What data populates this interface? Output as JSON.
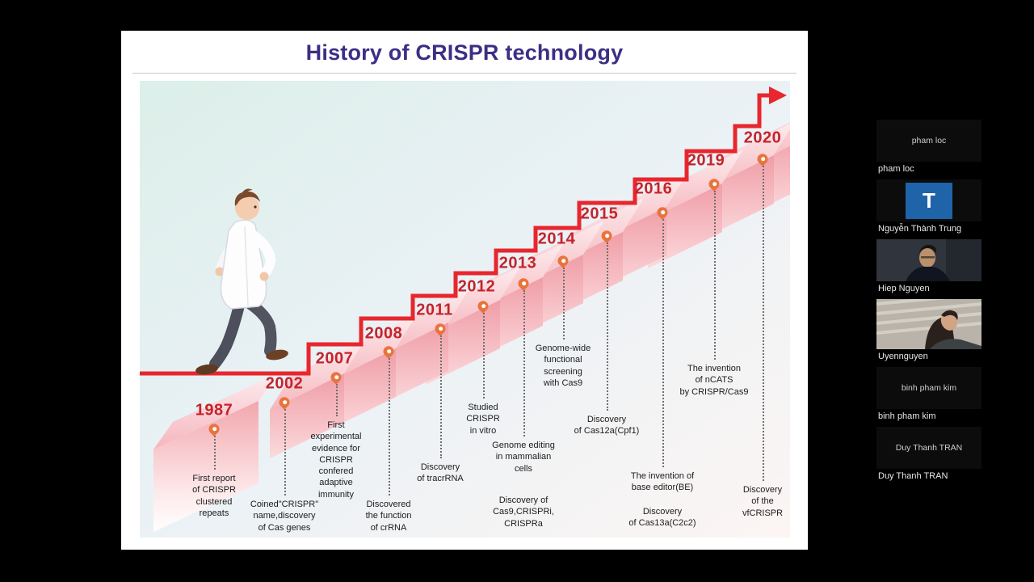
{
  "slide": {
    "title": "History of CRISPR technology",
    "marker_icon": "location-pin-icon",
    "arrow_icon": "up-right-arrow-icon",
    "timeline": [
      {
        "year": "1987",
        "descriptions": [
          "First report\nof CRISPR\nclustered\nrepeats"
        ]
      },
      {
        "year": "2002",
        "descriptions": [
          "Coined\"CRISPR\"\nname,discovery\nof Cas genes"
        ]
      },
      {
        "year": "2007",
        "descriptions": [
          "First\nexperimental\nevidence for\nCRISPR\nconfered\nadaptive\nimmunity"
        ]
      },
      {
        "year": "2008",
        "descriptions": [
          "Discovered\nthe function\nof crRNA"
        ]
      },
      {
        "year": "2011",
        "descriptions": [
          "Discovery\nof tracrRNA"
        ]
      },
      {
        "year": "2012",
        "descriptions": [
          "Studied\nCRISPR\nin vitro"
        ]
      },
      {
        "year": "2013",
        "descriptions": [
          "Genome editing\nin mammalian\ncells",
          "Discovery of\nCas9,CRISPRi,\nCRISPRa"
        ]
      },
      {
        "year": "2014",
        "descriptions": [
          "Genome-wide\nfunctional\nscreening\nwith Cas9"
        ]
      },
      {
        "year": "2015",
        "descriptions": [
          "Discovery\nof Cas12a(Cpf1)"
        ]
      },
      {
        "year": "2016",
        "descriptions": [
          "The invention of\nbase editor(BE)",
          "Discovery\nof Cas13a(C2c2)"
        ]
      },
      {
        "year": "2019",
        "descriptions": [
          "The invention\nof nCATS\nby CRISPR/Cas9"
        ]
      },
      {
        "year": "2020",
        "descriptions": [
          "Discovery\nof the\nvfCRISPR"
        ]
      }
    ],
    "colors": {
      "title": "#3b2f85",
      "year": "#c3242c",
      "arrow": "#e8262d",
      "pin": "#e8743d",
      "step_top": "#fbd9dc",
      "step_front": "#f3aab1"
    }
  },
  "meeting": {
    "participants": [
      {
        "name": "pham loc",
        "tile": "text",
        "tile_label": "pham loc"
      },
      {
        "name": "Nguyễn Thành Trung",
        "tile": "letter",
        "tile_label": "T"
      },
      {
        "name": "Hiep Nguyen",
        "tile": "photo-man"
      },
      {
        "name": "Uyennguyen",
        "tile": "photo-woman"
      },
      {
        "name": "binh pham kim",
        "tile": "text",
        "tile_label": "binh pham kim"
      },
      {
        "name": "Duy Thanh TRAN",
        "tile": "text",
        "tile_label": "Duy Thanh TRAN"
      }
    ]
  }
}
